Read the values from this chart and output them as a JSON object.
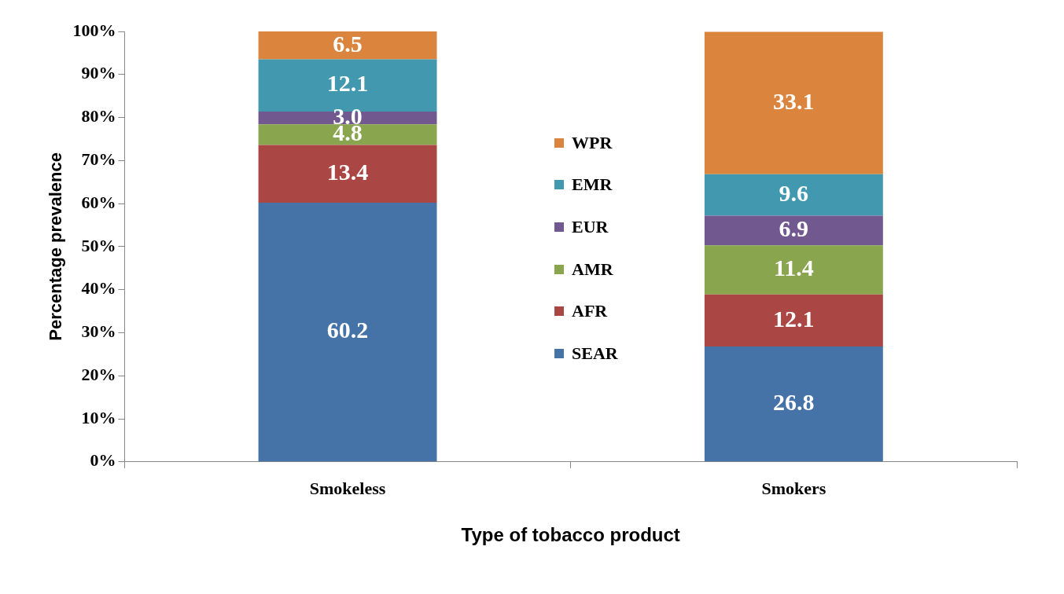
{
  "chart_data": {
    "type": "bar",
    "stacked": true,
    "xlabel": "Type of tobacco product",
    "ylabel": "Percentage prevalence",
    "categories": [
      "Smokeless",
      "Smokers"
    ],
    "series": [
      {
        "name": "SEAR",
        "color": "#4572a7",
        "values": [
          60.2,
          26.8
        ],
        "value_labels": [
          "60.2",
          "26.8"
        ]
      },
      {
        "name": "AFR",
        "color": "#aa4643",
        "values": [
          13.4,
          12.1
        ],
        "value_labels": [
          "13.4",
          "12.1"
        ]
      },
      {
        "name": "AMR",
        "color": "#89a54e",
        "values": [
          4.8,
          11.4
        ],
        "value_labels": [
          "4.8",
          "11.4"
        ]
      },
      {
        "name": "EUR",
        "color": "#71588f",
        "values": [
          3.0,
          6.9
        ],
        "value_labels": [
          "3.0",
          "6.9"
        ]
      },
      {
        "name": "EMR",
        "color": "#4198af",
        "values": [
          12.1,
          9.6
        ],
        "value_labels": [
          "12.1",
          "9.6"
        ]
      },
      {
        "name": "WPR",
        "color": "#db843d",
        "values": [
          6.5,
          33.1
        ],
        "value_labels": [
          "6.5",
          "33.1"
        ]
      }
    ],
    "ylim": [
      0,
      100
    ],
    "yticks": [
      {
        "value": 0,
        "label": "0%"
      },
      {
        "value": 10,
        "label": "10%"
      },
      {
        "value": 20,
        "label": "20%"
      },
      {
        "value": 30,
        "label": "30%"
      },
      {
        "value": 40,
        "label": "40%"
      },
      {
        "value": 50,
        "label": "50%"
      },
      {
        "value": 60,
        "label": "60%"
      },
      {
        "value": 70,
        "label": "70%"
      },
      {
        "value": 80,
        "label": "80%"
      },
      {
        "value": 90,
        "label": "90%"
      },
      {
        "value": 100,
        "label": "100%"
      }
    ],
    "grid": false,
    "legend": "center"
  }
}
